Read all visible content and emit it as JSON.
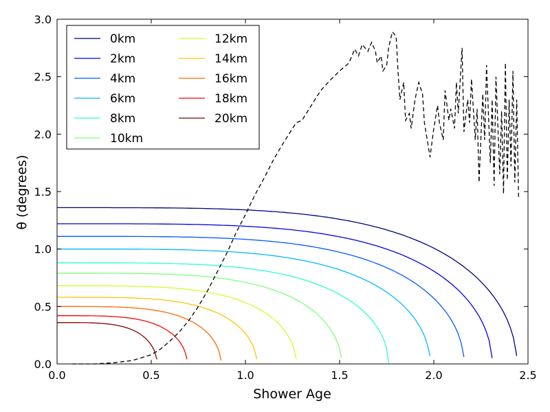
{
  "chart_data": {
    "type": "line",
    "title": "",
    "xlabel": "Shower Age",
    "ylabel": "θ (degrees)",
    "xlim": [
      0.0,
      2.5
    ],
    "ylim": [
      0.0,
      3.0
    ],
    "xticks": [
      "0.0",
      "0.5",
      "1.0",
      "1.5",
      "2.0",
      "2.5"
    ],
    "yticks": [
      "0.0",
      "0.5",
      "1.0",
      "1.5",
      "2.0",
      "2.5",
      "3.0"
    ],
    "grid": false,
    "legend_position": "top-left",
    "legend_columns": 2,
    "series": [
      {
        "name": "0km",
        "color": "#00007f",
        "y0": 1.36,
        "x_end": 2.44,
        "y_end": 0.07
      },
      {
        "name": "2km",
        "color": "#0000e3",
        "y0": 1.22,
        "x_end": 2.31,
        "y_end": 0.05
      },
      {
        "name": "4km",
        "color": "#0058ff",
        "y0": 1.11,
        "x_end": 2.16,
        "y_end": 0.06
      },
      {
        "name": "6km",
        "color": "#00b8ff",
        "y0": 1.0,
        "x_end": 1.98,
        "y_end": 0.07
      },
      {
        "name": "8km",
        "color": "#2bffcb",
        "y0": 0.88,
        "x_end": 1.76,
        "y_end": 0.01
      },
      {
        "name": "10km",
        "color": "#7dff7a",
        "y0": 0.79,
        "x_end": 1.51,
        "y_end": 0.05
      },
      {
        "name": "12km",
        "color": "#ceff28",
        "y0": 0.68,
        "x_end": 1.27,
        "y_end": 0.04
      },
      {
        "name": "14km",
        "color": "#ffc400",
        "y0": 0.58,
        "x_end": 1.06,
        "y_end": 0.04
      },
      {
        "name": "16km",
        "color": "#ff6800",
        "y0": 0.5,
        "x_end": 0.87,
        "y_end": 0.03
      },
      {
        "name": "18km",
        "color": "#f10800",
        "y0": 0.42,
        "x_end": 0.69,
        "y_end": 0.04
      },
      {
        "name": "20km",
        "color": "#7f0000",
        "y0": 0.36,
        "x_end": 0.53,
        "y_end": 0.04
      }
    ],
    "dashed_series": {
      "name": "",
      "color": "#000000",
      "points": [
        [
          0.08,
          0.0
        ],
        [
          0.2,
          0.0
        ],
        [
          0.3,
          0.01
        ],
        [
          0.4,
          0.03
        ],
        [
          0.5,
          0.08
        ],
        [
          0.55,
          0.13
        ],
        [
          0.6,
          0.2
        ],
        [
          0.65,
          0.28
        ],
        [
          0.7,
          0.38
        ],
        [
          0.75,
          0.5
        ],
        [
          0.8,
          0.64
        ],
        [
          0.85,
          0.8
        ],
        [
          0.9,
          0.96
        ],
        [
          0.95,
          1.14
        ],
        [
          1.0,
          1.3
        ],
        [
          1.05,
          1.47
        ],
        [
          1.1,
          1.62
        ],
        [
          1.15,
          1.78
        ],
        [
          1.2,
          1.92
        ],
        [
          1.25,
          2.05
        ],
        [
          1.27,
          2.1
        ],
        [
          1.3,
          2.12
        ],
        [
          1.35,
          2.25
        ],
        [
          1.4,
          2.38
        ],
        [
          1.45,
          2.47
        ],
        [
          1.5,
          2.55
        ],
        [
          1.55,
          2.62
        ],
        [
          1.58,
          2.74
        ],
        [
          1.6,
          2.68
        ],
        [
          1.62,
          2.78
        ],
        [
          1.65,
          2.72
        ],
        [
          1.67,
          2.8
        ],
        [
          1.69,
          2.72
        ],
        [
          1.7,
          2.62
        ],
        [
          1.72,
          2.68
        ],
        [
          1.73,
          2.55
        ],
        [
          1.75,
          2.6
        ],
        [
          1.76,
          2.75
        ],
        [
          1.78,
          2.89
        ],
        [
          1.8,
          2.85
        ],
        [
          1.81,
          2.55
        ],
        [
          1.82,
          2.3
        ],
        [
          1.84,
          2.45
        ],
        [
          1.85,
          2.12
        ],
        [
          1.87,
          2.18
        ],
        [
          1.88,
          2.05
        ],
        [
          1.9,
          2.3
        ],
        [
          1.92,
          2.45
        ],
        [
          1.94,
          2.35
        ],
        [
          1.95,
          2.1
        ],
        [
          1.97,
          1.9
        ],
        [
          1.98,
          1.8
        ],
        [
          2.0,
          2.05
        ],
        [
          2.02,
          2.25
        ],
        [
          2.03,
          2.1
        ],
        [
          2.05,
          1.95
        ],
        [
          2.06,
          2.38
        ],
        [
          2.08,
          2.12
        ],
        [
          2.09,
          2.22
        ],
        [
          2.11,
          2.05
        ],
        [
          2.12,
          2.45
        ],
        [
          2.13,
          2.18
        ],
        [
          2.15,
          2.75
        ],
        [
          2.16,
          2.02
        ],
        [
          2.18,
          2.3
        ],
        [
          2.19,
          2.1
        ],
        [
          2.2,
          2.48
        ],
        [
          2.22,
          1.95
        ],
        [
          2.23,
          2.22
        ],
        [
          2.24,
          1.58
        ],
        [
          2.26,
          2.35
        ],
        [
          2.27,
          1.95
        ],
        [
          2.28,
          2.6
        ],
        [
          2.3,
          1.75
        ],
        [
          2.31,
          2.3
        ],
        [
          2.32,
          1.55
        ],
        [
          2.33,
          2.5
        ],
        [
          2.35,
          1.65
        ],
        [
          2.36,
          2.2
        ],
        [
          2.37,
          1.48
        ],
        [
          2.38,
          2.62
        ],
        [
          2.39,
          1.6
        ],
        [
          2.4,
          2.3
        ],
        [
          2.41,
          1.72
        ],
        [
          2.42,
          2.55
        ],
        [
          2.43,
          1.58
        ],
        [
          2.44,
          2.3
        ],
        [
          2.45,
          1.45
        ]
      ]
    }
  }
}
